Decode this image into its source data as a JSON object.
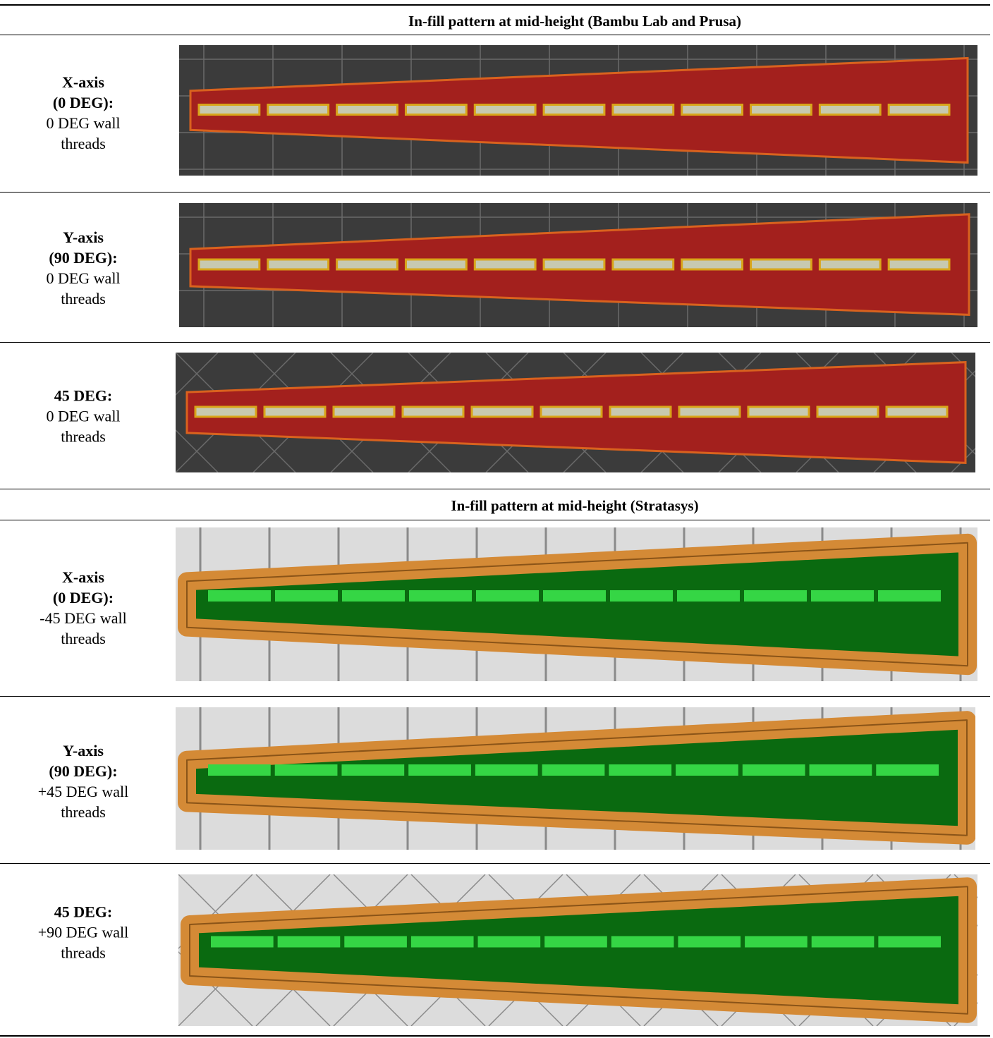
{
  "sections": [
    {
      "title": "In-fill pattern at mid-height (Bambu Lab and Prusa)",
      "rows": [
        {
          "bold": [
            "X-axis",
            "(0 DEG):"
          ],
          "regular": [
            "0 DEG wall",
            "threads"
          ]
        },
        {
          "bold": [
            "Y-axis",
            "(90 DEG):"
          ],
          "regular": [
            "0 DEG wall",
            "threads"
          ]
        },
        {
          "bold": [
            "45 DEG:"
          ],
          "regular": [
            "0 DEG wall",
            "threads"
          ]
        }
      ]
    },
    {
      "title": "In-fill pattern at mid-height (Stratasys)",
      "rows": [
        {
          "bold": [
            "X-axis",
            "(0 DEG):"
          ],
          "regular": [
            "-45 DEG wall",
            "threads"
          ]
        },
        {
          "bold": [
            "Y-axis",
            "(90 DEG):"
          ],
          "regular": [
            "+45 DEG wall",
            "threads"
          ]
        },
        {
          "bold": [
            "45 DEG:"
          ],
          "regular": [
            "+90 DEG wall",
            "threads"
          ]
        }
      ]
    }
  ]
}
